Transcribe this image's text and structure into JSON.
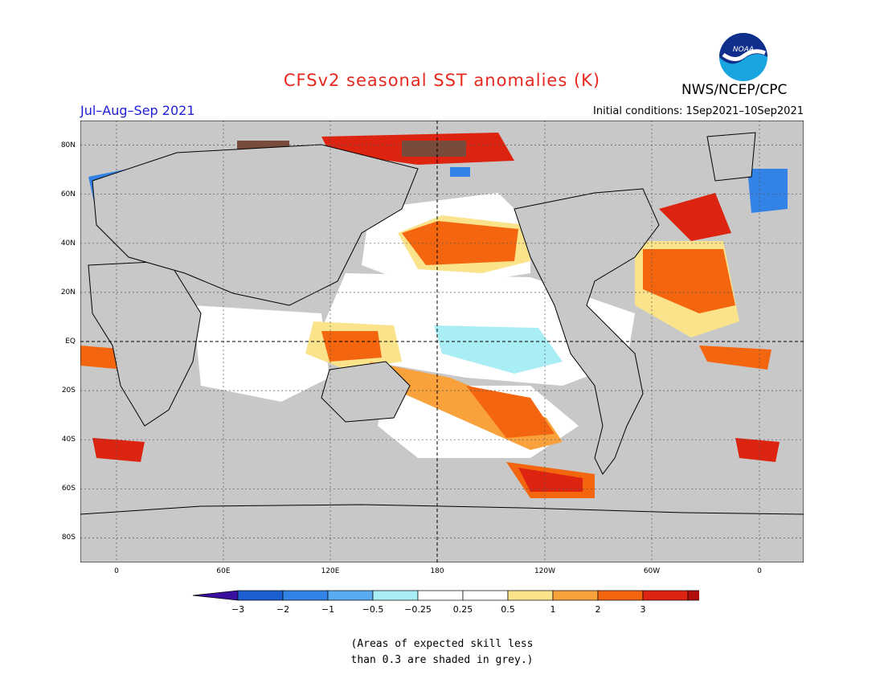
{
  "title": "CFSv2 seasonal SST anomalies (K)",
  "agency": "NWS/NCEP/CPC",
  "season": "Jul–Aug–Sep 2021",
  "initial_conditions": "Initial conditions: 1Sep2021–10Sep2021",
  "logo_text": "NOAA",
  "colors": {
    "title": "#e8281e",
    "season": "#2020d8",
    "land": "#c8c8c8",
    "ocean": "#ffffff"
  },
  "lat_labels": [
    "80N",
    "60N",
    "40N",
    "20N",
    "EQ",
    "20S",
    "40S",
    "60S",
    "80S"
  ],
  "lon_labels": [
    "0",
    "60E",
    "120E",
    "180",
    "120W",
    "60W",
    "0"
  ],
  "colorbar": {
    "colors": [
      "#3a0fa0",
      "#1c5fd0",
      "#3382e6",
      "#5aaaf0",
      "#aaeef5",
      "#ffffff",
      "#ffffff",
      "#fae38a",
      "#f9a13b",
      "#f3650f",
      "#dd2411",
      "#b00d0d",
      "#7a4a3a"
    ],
    "labels": [
      "−3",
      "−2",
      "−1",
      "−0.5",
      "−0.25",
      "0.25",
      "0.5",
      "1",
      "2",
      "3"
    ]
  },
  "note_lines": [
    "(Areas of expected skill less",
    "than 0.3 are shaded in grey.)"
  ]
}
